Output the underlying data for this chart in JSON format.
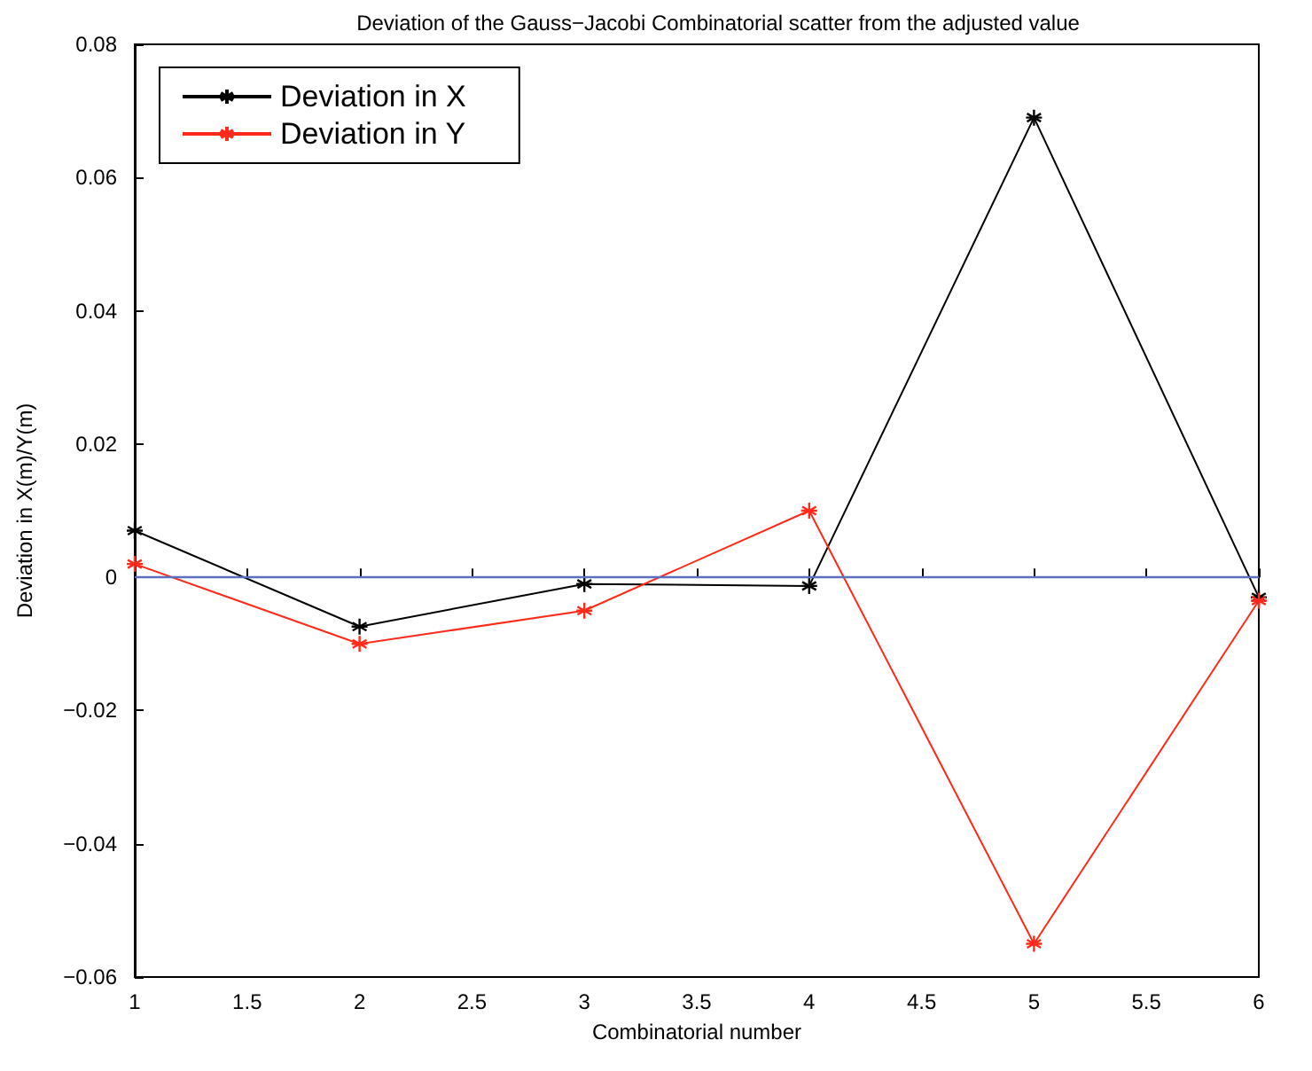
{
  "chart_data": {
    "type": "line",
    "title": "Deviation of the Gauss−Jacobi Combinatorial scatter from the adjusted value",
    "xlabel": "Combinatorial number",
    "ylabel": "Deviation in X(m)/Y(m)",
    "x": [
      1,
      2,
      3,
      4,
      5,
      6
    ],
    "series": [
      {
        "name": "Deviation in X",
        "color": "#000000",
        "values": [
          0.007,
          -0.0074,
          -0.001,
          -0.0013,
          0.069,
          -0.003
        ]
      },
      {
        "name": "Deviation in Y",
        "color": "#ff2a1a",
        "values": [
          0.002,
          -0.01,
          -0.005,
          0.01,
          -0.055,
          -0.0035
        ]
      }
    ],
    "xlim": [
      1,
      6
    ],
    "xticks": [
      1,
      1.5,
      2,
      2.5,
      3,
      3.5,
      4,
      4.5,
      5,
      5.5,
      6
    ],
    "ylim": [
      -0.06,
      0.08
    ],
    "yticks": [
      {
        "value": -0.06,
        "label": "−0.06"
      },
      {
        "value": -0.04,
        "label": "−0.04"
      },
      {
        "value": -0.02,
        "label": "−0.02"
      },
      0,
      0.02,
      0.04,
      0.06,
      0.08
    ],
    "ref_lines": [
      {
        "axis": "y",
        "value": 0,
        "label": null,
        "color": "#5b6fbf"
      }
    ],
    "grid": false,
    "legend": "top left",
    "marker": "cross",
    "line_style": "solid"
  }
}
